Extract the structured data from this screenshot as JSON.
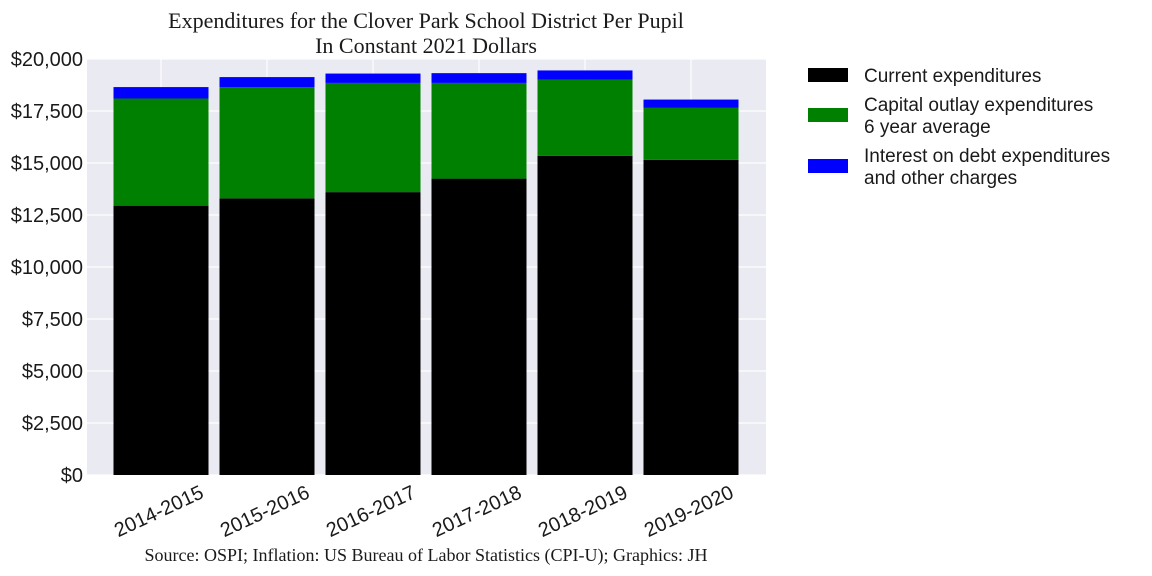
{
  "chart_data": {
    "type": "bar",
    "stacked": true,
    "title": "Expenditures for the Clover Park School District Per Pupil",
    "subtitle": "In Constant 2021 Dollars",
    "xlabel": "",
    "ylabel": "",
    "ylim": [
      0,
      20000
    ],
    "yticks": [
      0,
      2500,
      5000,
      7500,
      10000,
      12500,
      15000,
      17500,
      20000
    ],
    "ytick_labels": [
      "$0",
      "$2,500",
      "$5,000",
      "$7,500",
      "$10,000",
      "$12,500",
      "$15,000",
      "$17,500",
      "$20,000"
    ],
    "categories": [
      "2014-2015",
      "2015-2016",
      "2016-2017",
      "2017-2018",
      "2018-2019",
      "2019-2020"
    ],
    "series": [
      {
        "name": "Current expenditures",
        "legend_lines": [
          "Current expenditures"
        ],
        "color": "#000000",
        "values": [
          12950,
          13300,
          13600,
          14250,
          15350,
          15150
        ]
      },
      {
        "name": "Capital outlay expenditures 6 year average",
        "legend_lines": [
          "Capital outlay expenditures",
          "6 year average"
        ],
        "color": "#008000",
        "values": [
          5150,
          5350,
          5250,
          4600,
          3650,
          2500
        ]
      },
      {
        "name": "Interest on debt expenditures and other charges",
        "legend_lines": [
          "Interest on debt expenditures",
          "and other charges"
        ],
        "color": "#0000ff",
        "values": [
          550,
          480,
          450,
          470,
          450,
          400
        ]
      }
    ],
    "grid": true,
    "legend_position": "outside-right-top",
    "source": "Source: OSPI; Inflation: US Bureau of Labor Statistics (CPI-U); Graphics: JH",
    "colors": {
      "plot_background": "#eaeaf2",
      "grid": "#ffffff"
    }
  }
}
